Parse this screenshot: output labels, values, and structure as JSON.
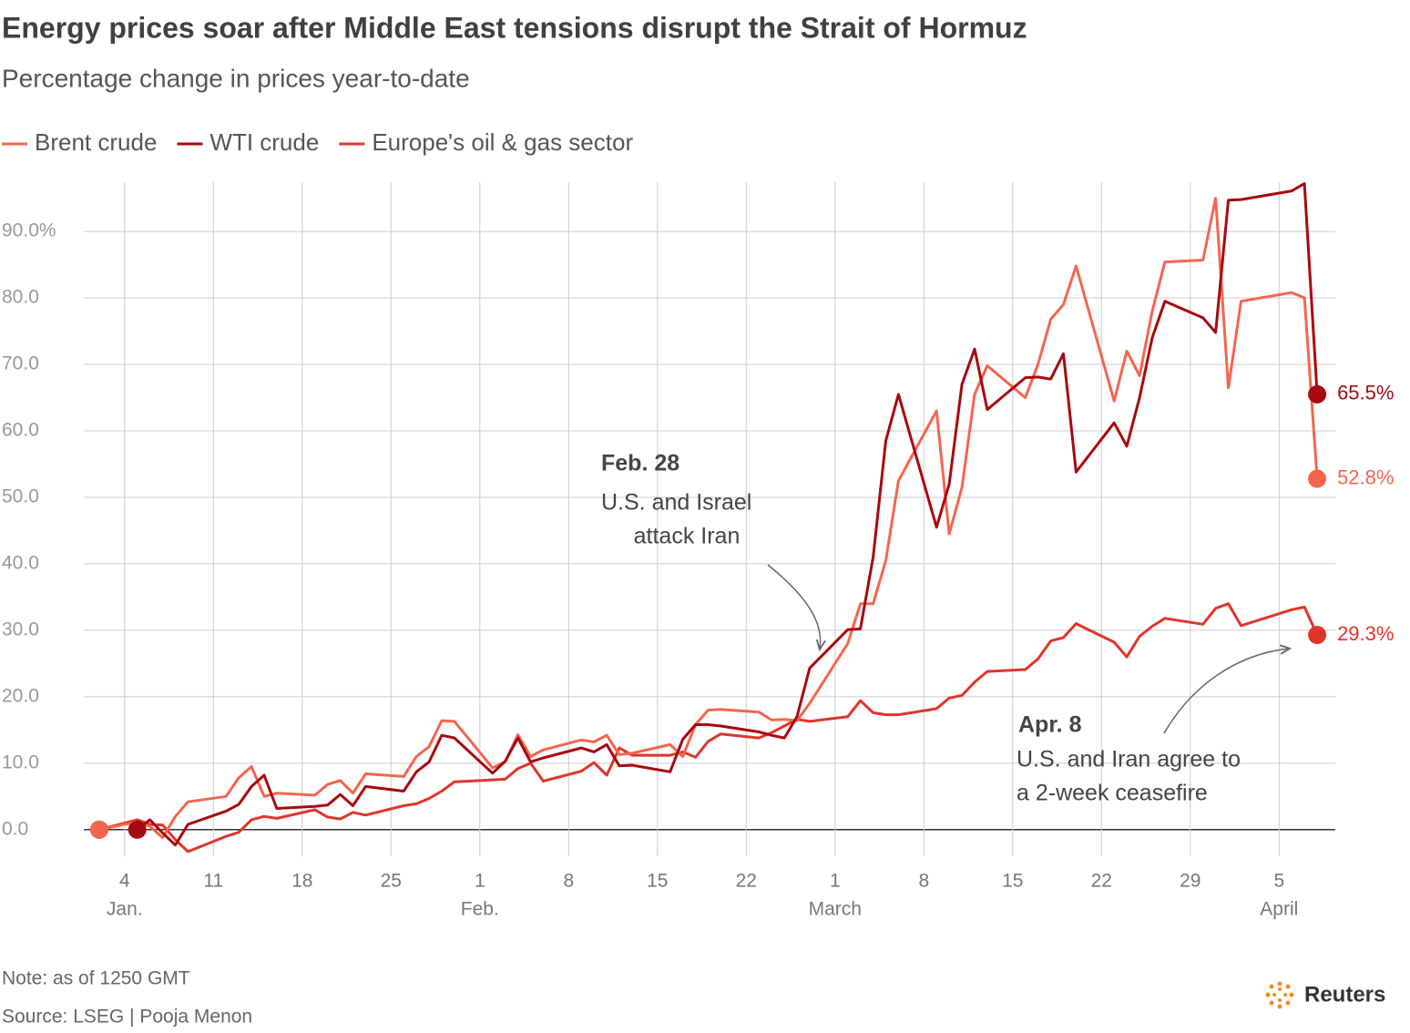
{
  "chart_data": {
    "type": "line",
    "title": "Energy prices soar after Middle East tensions disrupt the Strait of Hormuz",
    "subtitle": "Percentage change in prices year-to-date",
    "x": [
      "01-02",
      "01-05",
      "01-06",
      "01-07",
      "01-08",
      "01-09",
      "01-12",
      "01-13",
      "01-14",
      "01-15",
      "01-16",
      "01-19",
      "01-20",
      "01-21",
      "01-22",
      "01-23",
      "01-26",
      "01-27",
      "01-28",
      "01-29",
      "01-30",
      "02-02",
      "02-03",
      "02-04",
      "02-05",
      "02-06",
      "02-09",
      "02-10",
      "02-11",
      "02-12",
      "02-13",
      "02-16",
      "02-17",
      "02-18",
      "02-19",
      "02-20",
      "02-23",
      "02-24",
      "02-25",
      "02-26",
      "02-27",
      "03-02",
      "03-03",
      "03-04",
      "03-05",
      "03-06",
      "03-09",
      "03-10",
      "03-11",
      "03-12",
      "03-13",
      "03-16",
      "03-17",
      "03-18",
      "03-19",
      "03-20",
      "03-23",
      "03-24",
      "03-25",
      "03-26",
      "03-27",
      "03-30",
      "03-31",
      "04-01",
      "04-02",
      "04-06",
      "04-07",
      "04-08"
    ],
    "series": [
      {
        "name": "Brent crude",
        "color": "#f4654f",
        "values": [
          0,
          1.2,
          0.5,
          -1.2,
          2,
          4.2,
          5,
          7.8,
          9.5,
          5,
          5.5,
          5.2,
          6.8,
          7.4,
          5.5,
          8.4,
          8,
          11,
          12.5,
          16.4,
          16.3,
          9.3,
          10.2,
          14.3,
          11,
          12,
          13.5,
          13.2,
          14.2,
          11.3,
          11.5,
          12.8,
          11,
          15.8,
          18,
          18.1,
          17.7,
          16.5,
          16.6,
          16.4,
          19,
          28,
          34,
          34,
          40.5,
          52.5,
          63,
          44.5,
          51.5,
          65.5,
          69.8,
          65,
          70,
          76.8,
          79,
          84.8,
          64.5,
          72,
          68.3,
          78,
          85.4,
          85.7,
          95,
          66.5,
          79.5,
          80.8,
          80,
          52.8
        ],
        "value_labels": [
          null,
          null,
          null,
          null,
          null,
          null,
          null,
          null,
          null,
          null,
          null,
          null,
          null,
          null,
          null,
          null,
          null,
          null,
          null,
          null,
          null,
          null,
          null,
          null,
          null,
          null,
          null,
          null,
          null,
          null,
          null,
          null,
          null,
          null,
          null,
          null,
          null,
          null,
          null,
          null,
          null,
          null,
          null,
          null,
          null,
          null,
          null,
          null,
          null,
          null,
          null,
          null,
          null,
          null,
          null,
          null,
          null,
          null,
          null,
          null,
          null,
          null,
          null,
          null,
          null,
          null,
          null,
          "52.8%"
        ]
      },
      {
        "name": "WTI crude",
        "color": "#a8080f",
        "values": [
          null,
          0,
          1.5,
          -0.5,
          -2.3,
          0.8,
          2.8,
          3.8,
          6.5,
          8.2,
          3.2,
          3.5,
          3.7,
          5.3,
          3.6,
          6.5,
          5.8,
          8.7,
          10.2,
          14.2,
          13.8,
          8.5,
          10.3,
          13.8,
          10.2,
          10.8,
          12.3,
          11.7,
          12.8,
          9.6,
          9.7,
          8.7,
          13.6,
          15.8,
          15.8,
          15.6,
          14.7,
          14.2,
          13.8,
          17,
          24.3,
          30.1,
          30.2,
          41,
          58.5,
          65.5,
          45.5,
          52,
          67,
          72.3,
          63.2,
          68,
          68.1,
          67.8,
          71.6,
          53.8,
          61.2,
          57.7,
          65,
          74,
          79.5,
          77,
          74.8,
          94.7,
          94.8,
          96.1,
          97.2,
          65.5
        ],
        "value_labels": [
          null,
          null,
          null,
          null,
          null,
          null,
          null,
          null,
          null,
          null,
          null,
          null,
          null,
          null,
          null,
          null,
          null,
          null,
          null,
          null,
          null,
          null,
          null,
          null,
          null,
          null,
          null,
          null,
          null,
          null,
          null,
          null,
          null,
          null,
          null,
          null,
          null,
          null,
          null,
          null,
          null,
          null,
          null,
          null,
          null,
          null,
          null,
          null,
          null,
          null,
          null,
          null,
          null,
          null,
          null,
          null,
          null,
          null,
          null,
          null,
          null,
          null,
          null,
          null,
          null,
          null,
          null,
          "65.5%"
        ]
      },
      {
        "name": "Europe's oil & gas sector",
        "color": "#e0352b",
        "values": [
          0,
          1.5,
          0.8,
          0.7,
          -1.5,
          -3.3,
          -1,
          -0.4,
          1.5,
          2,
          1.7,
          3,
          1.9,
          1.6,
          2.6,
          2.2,
          3.6,
          3.9,
          4.7,
          5.8,
          7.2,
          7.5,
          7.6,
          9.2,
          10,
          7.3,
          8.8,
          10.1,
          8.2,
          12.3,
          11.2,
          11.2,
          11.7,
          10.9,
          13.3,
          14.4,
          13.8,
          14.6,
          15.6,
          16.6,
          16.3,
          17,
          19.4,
          17.6,
          17.3,
          17.3,
          18.2,
          19.8,
          20.2,
          22.2,
          23.8,
          24.1,
          25.7,
          28.4,
          28.9,
          31,
          28.2,
          26,
          29.1,
          30.6,
          31.8,
          30.9,
          33.3,
          34,
          30.7,
          33.1,
          33.5,
          29.3
        ],
        "value_labels": [
          null,
          null,
          null,
          null,
          null,
          null,
          null,
          null,
          null,
          null,
          null,
          null,
          null,
          null,
          null,
          null,
          null,
          null,
          null,
          null,
          null,
          null,
          null,
          null,
          null,
          null,
          null,
          null,
          null,
          null,
          null,
          null,
          null,
          null,
          null,
          null,
          null,
          null,
          null,
          null,
          null,
          null,
          null,
          null,
          null,
          null,
          null,
          null,
          null,
          null,
          null,
          null,
          null,
          null,
          null,
          null,
          null,
          null,
          null,
          null,
          null,
          null,
          null,
          null,
          null,
          null,
          null,
          "29.3%"
        ]
      }
    ],
    "xlim": [
      "01-01",
      "04-09"
    ],
    "xticks": [
      {
        "value": "01-04",
        "label": "4"
      },
      {
        "value": "01-11",
        "label": "11"
      },
      {
        "value": "01-18",
        "label": "18"
      },
      {
        "value": "01-25",
        "label": "25"
      },
      {
        "value": "02-01",
        "label": "1"
      },
      {
        "value": "02-08",
        "label": "8"
      },
      {
        "value": "02-15",
        "label": "15"
      },
      {
        "value": "02-22",
        "label": "22"
      },
      {
        "value": "03-01",
        "label": "1"
      },
      {
        "value": "03-08",
        "label": "8"
      },
      {
        "value": "03-15",
        "label": "15"
      },
      {
        "value": "03-22",
        "label": "22"
      },
      {
        "value": "03-29",
        "label": "29"
      },
      {
        "value": "04-05",
        "label": "5"
      }
    ],
    "month_labels": [
      {
        "value": "01-04",
        "label": "Jan."
      },
      {
        "value": "02-01",
        "label": "Feb."
      },
      {
        "value": "03-01",
        "label": "March"
      },
      {
        "value": "04-05",
        "label": "April"
      }
    ],
    "ylim": [
      -4,
      97
    ],
    "yticks": [
      {
        "value": 0,
        "label": "0.0"
      },
      {
        "value": 10,
        "label": "10.0"
      },
      {
        "value": 20,
        "label": "20.0"
      },
      {
        "value": 30,
        "label": "30.0"
      },
      {
        "value": 40,
        "label": "40.0"
      },
      {
        "value": 50,
        "label": "50.0"
      },
      {
        "value": 60,
        "label": "60.0"
      },
      {
        "value": 70,
        "label": "70.0"
      },
      {
        "value": 80,
        "label": "80.0"
      },
      {
        "value": 90,
        "label": "90.0%"
      }
    ],
    "grid": true,
    "legend": "top-left",
    "annotations": [
      {
        "title": "Feb. 28",
        "text": [
          "U.S. and Israel",
          "attack Iran"
        ]
      },
      {
        "title": "Apr. 8",
        "text": [
          "U.S. and Iran agree to",
          "a 2-week ceasefire"
        ]
      }
    ],
    "note": "Note: as of 1250 GMT",
    "source": "Source: LSEG | Pooja Menon",
    "logo": "Reuters"
  }
}
